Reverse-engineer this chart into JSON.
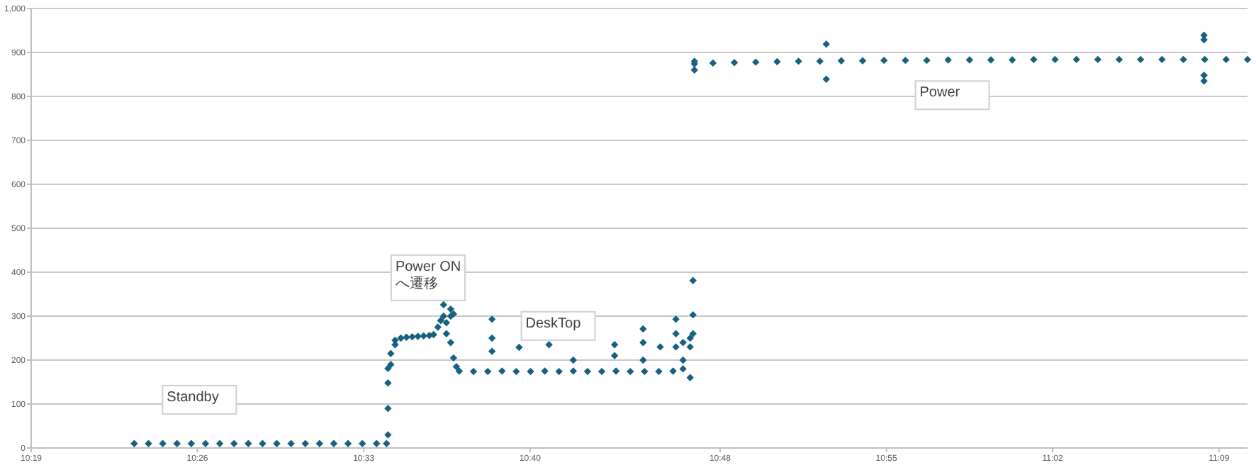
{
  "chart_data": {
    "type": "scatter",
    "marker": "diamond",
    "grid": "y",
    "xlim": [
      10.3167,
      11.17
    ],
    "ylim": [
      0,
      1000
    ],
    "xticks": [
      {
        "value": 10.3167,
        "label": "10:19"
      },
      {
        "value": 10.4333,
        "label": "10:26"
      },
      {
        "value": 10.55,
        "label": "10:33"
      },
      {
        "value": 10.6667,
        "label": "10:40"
      },
      {
        "value": 10.8,
        "label": "10:48"
      },
      {
        "value": 10.9167,
        "label": "10:55"
      },
      {
        "value": 11.0333,
        "label": "11:02"
      },
      {
        "value": 11.15,
        "label": "11:09"
      }
    ],
    "yticks": [
      0,
      100,
      200,
      300,
      400,
      500,
      600,
      700,
      800,
      900,
      {
        "value": 1000,
        "label": "1,000"
      }
    ],
    "series": [
      {
        "color": "#17607f",
        "x": [
          10.389,
          10.399,
          10.409,
          10.419,
          10.429,
          10.439,
          10.449,
          10.459,
          10.469,
          10.479,
          10.489,
          10.499,
          10.509,
          10.519,
          10.529,
          10.539,
          10.549,
          10.559,
          10.566,
          10.567,
          10.567,
          10.567,
          10.567,
          10.569,
          10.569,
          10.572,
          10.572,
          10.576,
          10.58,
          10.584,
          10.588,
          10.592,
          10.596,
          10.599,
          10.602,
          10.604,
          10.606,
          10.606,
          10.608,
          10.608,
          10.611,
          10.611,
          10.611,
          10.613,
          10.613,
          10.615,
          10.617,
          10.627,
          10.637,
          10.64,
          10.64,
          10.64,
          10.647,
          10.657,
          10.659,
          10.667,
          10.677,
          10.68,
          10.687,
          10.697,
          10.697,
          10.707,
          10.717,
          10.726,
          10.726,
          10.727,
          10.737,
          10.746,
          10.746,
          10.746,
          10.747,
          10.757,
          10.758,
          10.767,
          10.769,
          10.769,
          10.769,
          10.774,
          10.774,
          10.774,
          10.779,
          10.779,
          10.779,
          10.781,
          10.781,
          10.781,
          10.782,
          10.782,
          10.782,
          10.795,
          10.81,
          10.825,
          10.84,
          10.855,
          10.87,
          10.8745,
          10.8745,
          10.885,
          10.9,
          10.915,
          10.93,
          10.945,
          10.96,
          10.975,
          10.99,
          11.005,
          11.02,
          11.035,
          11.05,
          11.065,
          11.08,
          11.095,
          11.11,
          11.125,
          11.1395,
          11.1395,
          11.1395,
          11.1395,
          11.14,
          11.155,
          11.17
        ],
        "values": [
          10,
          10,
          10,
          10,
          10,
          10,
          10,
          10,
          10,
          10,
          10,
          10,
          10,
          10,
          10,
          10,
          10,
          10,
          10,
          30,
          90,
          148,
          181,
          190,
          215,
          245,
          235,
          250,
          252,
          253,
          254,
          255,
          256,
          258,
          275,
          290,
          300,
          326,
          285,
          260,
          316,
          300,
          240,
          305,
          205,
          185,
          175,
          174,
          174,
          293,
          250,
          220,
          175,
          174,
          229,
          174,
          175,
          235,
          174,
          175,
          200,
          174,
          174,
          235,
          210,
          175,
          174,
          271,
          240,
          200,
          174,
          174,
          230,
          175,
          293,
          260,
          230,
          240,
          200,
          180,
          160,
          230,
          250,
          381,
          303,
          260,
          874,
          860,
          880,
          876,
          877,
          878,
          879,
          880,
          880,
          919,
          839,
          881,
          881,
          882,
          882,
          882,
          883,
          883,
          883,
          883,
          884,
          884,
          884,
          884,
          884,
          884,
          884,
          884,
          939,
          929,
          848,
          835,
          884,
          884,
          884
        ]
      }
    ],
    "annotations": [
      "Standby",
      "Power ON\nへ遷移",
      "DeskTop",
      "Power"
    ]
  }
}
